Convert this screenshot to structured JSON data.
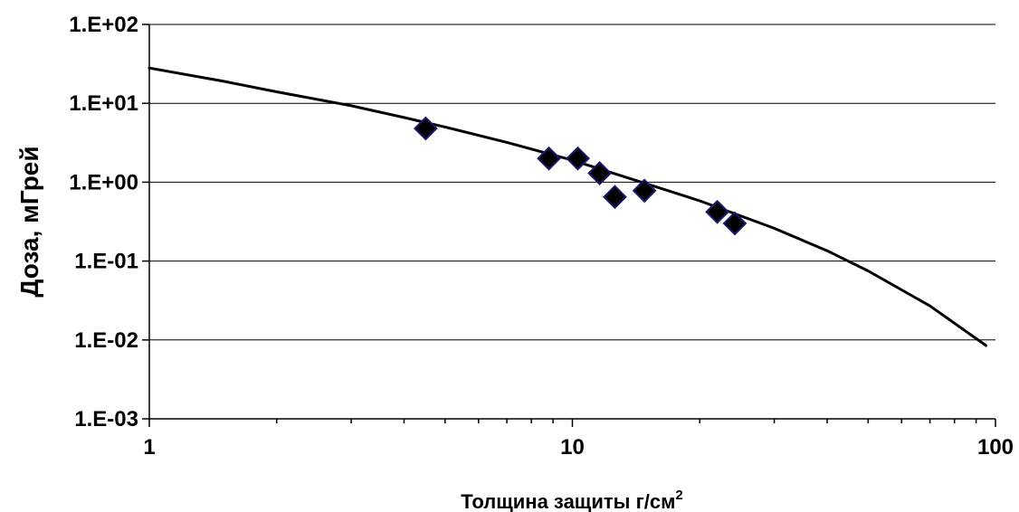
{
  "chart_data": {
    "type": "scatter",
    "title": "",
    "xlabel": "Толщина защиты г/см",
    "xlabel_superscript": "2",
    "ylabel": "Доза, мГрей",
    "x_scale": "log",
    "y_scale": "log",
    "xlim": [
      1,
      100
    ],
    "ylim": [
      0.001,
      100
    ],
    "grid": "horizontal",
    "x_ticks": [
      "1",
      "10",
      "100"
    ],
    "y_ticks": [
      "1.E-03",
      "1.E-02",
      "1.E-01",
      "1.E+00",
      "1.E+01",
      "1.E+02"
    ],
    "series": [
      {
        "kind": "scatter",
        "marker": "diamond",
        "color": "#000000",
        "edge_color": "#1a1a6e",
        "x": [
          4.5,
          8.8,
          10.3,
          11.6,
          12.6,
          14.8,
          22.0,
          24.2
        ],
        "y": [
          4.8,
          2.0,
          2.0,
          1.3,
          0.65,
          0.78,
          0.42,
          0.3
        ]
      },
      {
        "kind": "line",
        "color": "#000000",
        "x": [
          1,
          1.5,
          2,
          3,
          4,
          5,
          7,
          10,
          15,
          20,
          30,
          40,
          50,
          70,
          95
        ],
        "y": [
          28,
          19,
          14,
          9.3,
          6.6,
          5.0,
          3.2,
          1.9,
          0.95,
          0.58,
          0.26,
          0.135,
          0.075,
          0.027,
          0.0085
        ]
      }
    ]
  }
}
